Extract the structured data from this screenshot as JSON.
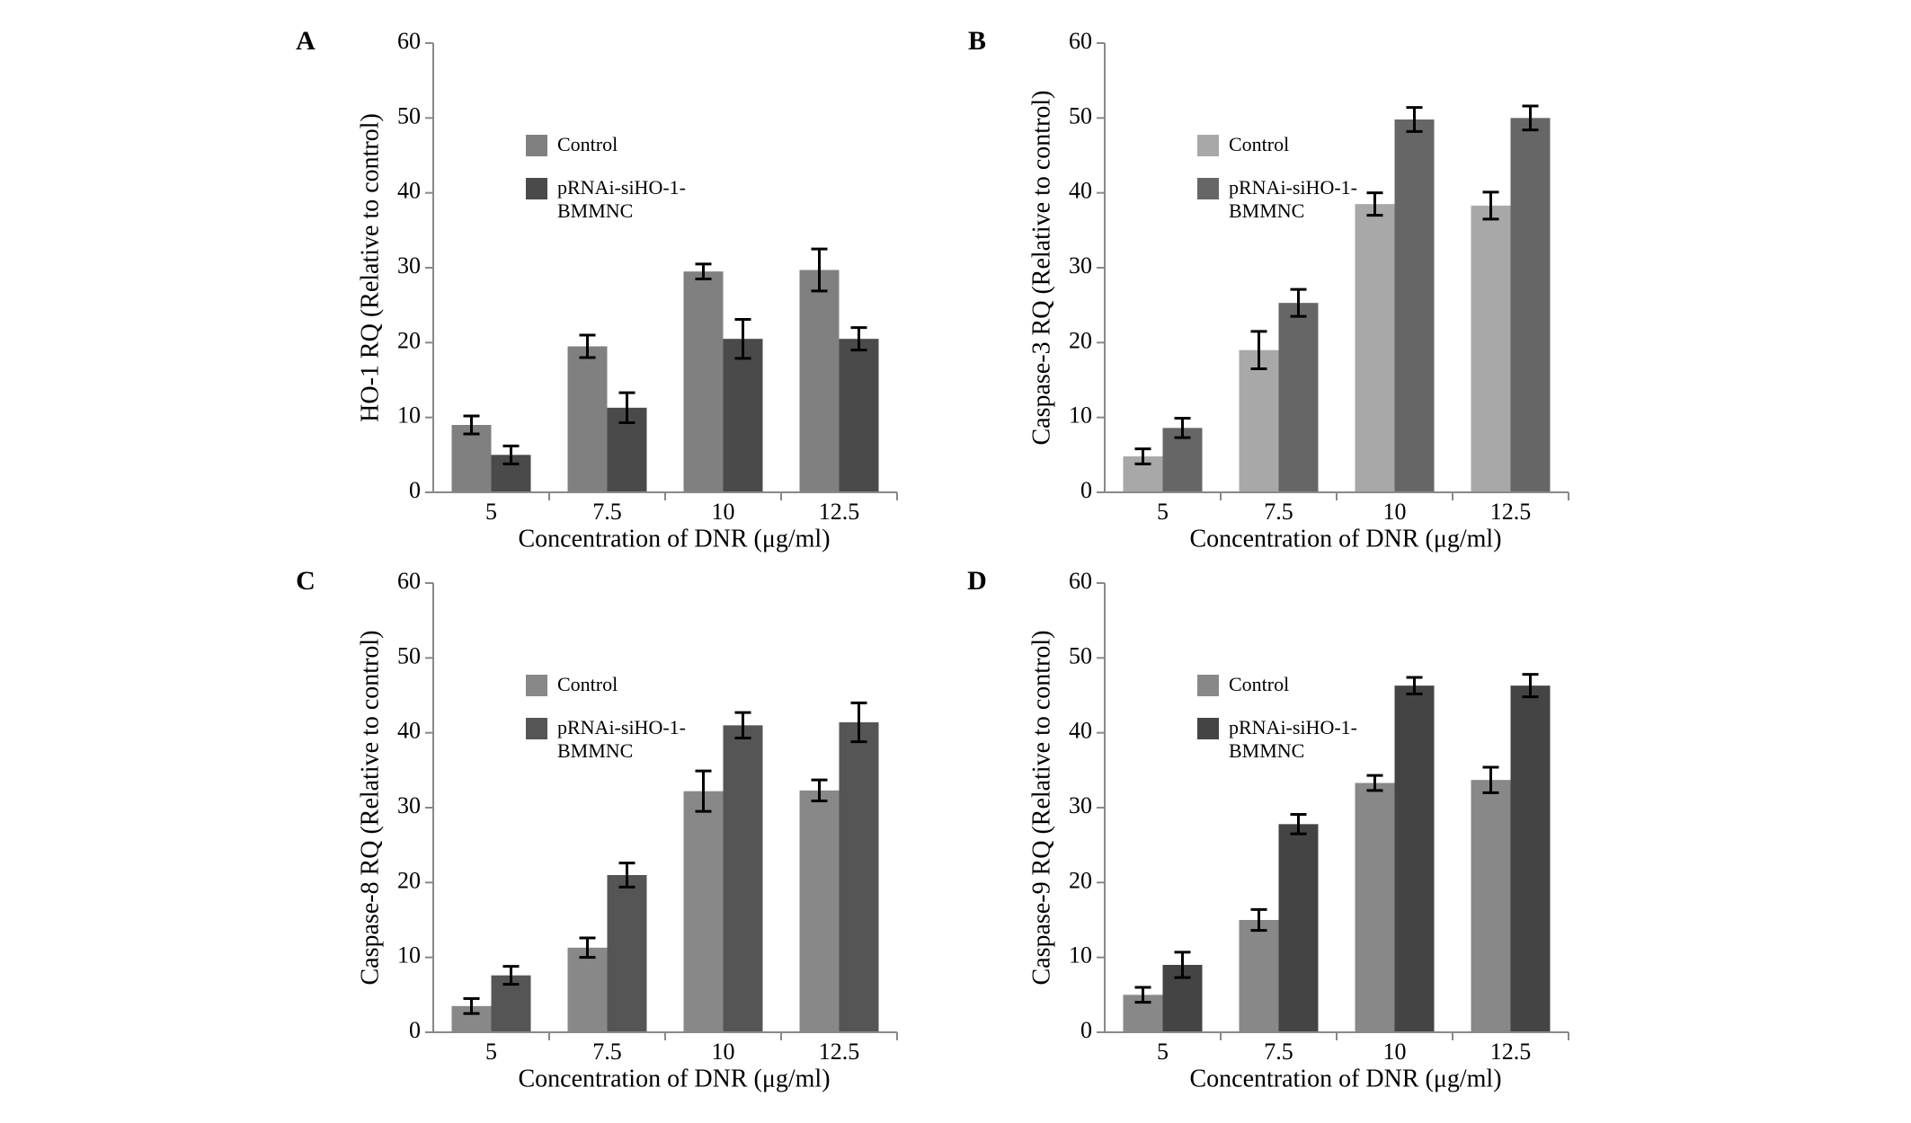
{
  "chart_data": [
    {
      "type": "bar",
      "label": "A",
      "y_label": "HO-1 RQ (Relative to control)",
      "x_label": "Concentration of DNR (μg/ml)",
      "categories": [
        "5",
        "7.5",
        "10",
        "12.5"
      ],
      "ylim": [
        0,
        60
      ],
      "yticks": [
        0,
        10,
        20,
        30,
        40,
        50,
        60
      ],
      "series": [
        {
          "name": "Control",
          "color": "#808080",
          "values": [
            9,
            19.5,
            29.5,
            29.7
          ],
          "errors": [
            1.2,
            1.5,
            1,
            2.8
          ]
        },
        {
          "name": "pRNAi-siHO-1-BMMNC",
          "color": "#4a4a4a",
          "values": [
            5,
            11.3,
            20.5,
            20.5
          ],
          "errors": [
            1.2,
            2,
            2.6,
            1.5
          ]
        }
      ]
    },
    {
      "type": "bar",
      "label": "B",
      "y_label": "Caspase-3 RQ (Relative to control)",
      "x_label": "Concentration of DNR (μg/ml)",
      "categories": [
        "5",
        "7.5",
        "10",
        "12.5"
      ],
      "ylim": [
        0,
        60
      ],
      "yticks": [
        0,
        10,
        20,
        30,
        40,
        50,
        60
      ],
      "series": [
        {
          "name": "Control",
          "color": "#a8a8a8",
          "values": [
            4.8,
            19,
            38.5,
            38.3
          ],
          "errors": [
            1,
            2.5,
            1.5,
            1.8
          ]
        },
        {
          "name": "pRNAi-siHO-1-BMMNC",
          "color": "#666666",
          "values": [
            8.6,
            25.3,
            49.8,
            50
          ],
          "errors": [
            1.3,
            1.8,
            1.6,
            1.6
          ]
        }
      ]
    },
    {
      "type": "bar",
      "label": "C",
      "y_label": "Caspase-8 RQ (Relative to control)",
      "x_label": "Concentration of DNR (μg/ml)",
      "categories": [
        "5",
        "7.5",
        "10",
        "12.5"
      ],
      "ylim": [
        0,
        60
      ],
      "yticks": [
        0,
        10,
        20,
        30,
        40,
        50,
        60
      ],
      "series": [
        {
          "name": "Control",
          "color": "#888888",
          "values": [
            3.5,
            11.3,
            32.2,
            32.3
          ],
          "errors": [
            1,
            1.3,
            2.7,
            1.4
          ]
        },
        {
          "name": "pRNAi-siHO-1-BMMNC",
          "color": "#555555",
          "values": [
            7.6,
            21,
            41,
            41.4
          ],
          "errors": [
            1.2,
            1.6,
            1.7,
            2.6
          ]
        }
      ]
    },
    {
      "type": "bar",
      "label": "D",
      "y_label": "Caspase-9 RQ (Relative to control)",
      "x_label": "Concentration of DNR (μg/ml)",
      "categories": [
        "5",
        "7.5",
        "10",
        "12.5"
      ],
      "ylim": [
        0,
        60
      ],
      "yticks": [
        0,
        10,
        20,
        30,
        40,
        50,
        60
      ],
      "series": [
        {
          "name": "Control",
          "color": "#888888",
          "values": [
            5,
            15,
            33.3,
            33.7
          ],
          "errors": [
            1,
            1.4,
            1,
            1.7
          ]
        },
        {
          "name": "pRNAi-siHO-1-BMMNC",
          "color": "#444444",
          "values": [
            9,
            27.8,
            46.3,
            46.3
          ],
          "errors": [
            1.7,
            1.3,
            1.1,
            1.5
          ]
        }
      ]
    }
  ]
}
